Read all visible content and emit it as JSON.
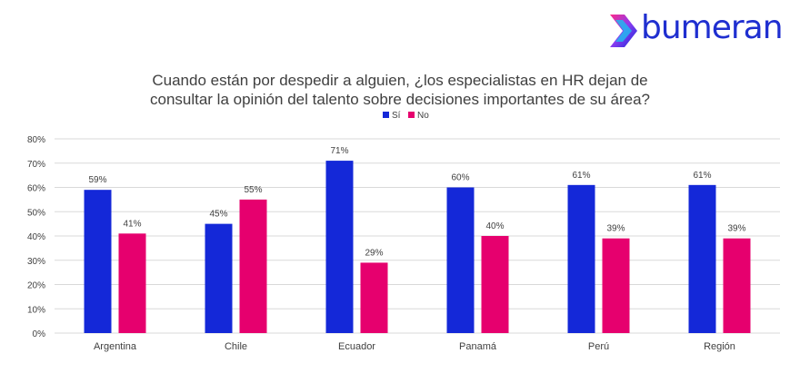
{
  "brand": {
    "name": "bumeran"
  },
  "colors": {
    "si": "#1428d8",
    "no": "#e6006e",
    "grid": "#d9d9d9",
    "brand_text": "#1f2fd0"
  },
  "chart_data": {
    "type": "bar",
    "title": "Cuando están por despedir a alguien, ¿los especialistas en HR dejan de consultar la opinión del talento sobre decisiones importantes de su área?",
    "title_lines": [
      "Cuando están por despedir a alguien, ¿los especialistas en HR dejan de",
      "consultar la opinión del talento sobre decisiones importantes de su área?"
    ],
    "categories": [
      "Argentina",
      "Chile",
      "Ecuador",
      "Panamá",
      "Perú",
      "Región"
    ],
    "series": [
      {
        "name": "Sí",
        "values": [
          59,
          45,
          71,
          60,
          61,
          61
        ]
      },
      {
        "name": "No",
        "values": [
          41,
          55,
          29,
          40,
          39,
          39
        ]
      }
    ],
    "value_suffix": "%",
    "ylim": [
      0,
      80
    ],
    "yticks": [
      0,
      10,
      20,
      30,
      40,
      50,
      60,
      70,
      80
    ],
    "ytick_labels": [
      "0%",
      "10%",
      "20%",
      "30%",
      "40%",
      "50%",
      "60%",
      "70%",
      "80%"
    ],
    "grid": true,
    "legend_position": "top-center",
    "xlabel": "",
    "ylabel": ""
  }
}
